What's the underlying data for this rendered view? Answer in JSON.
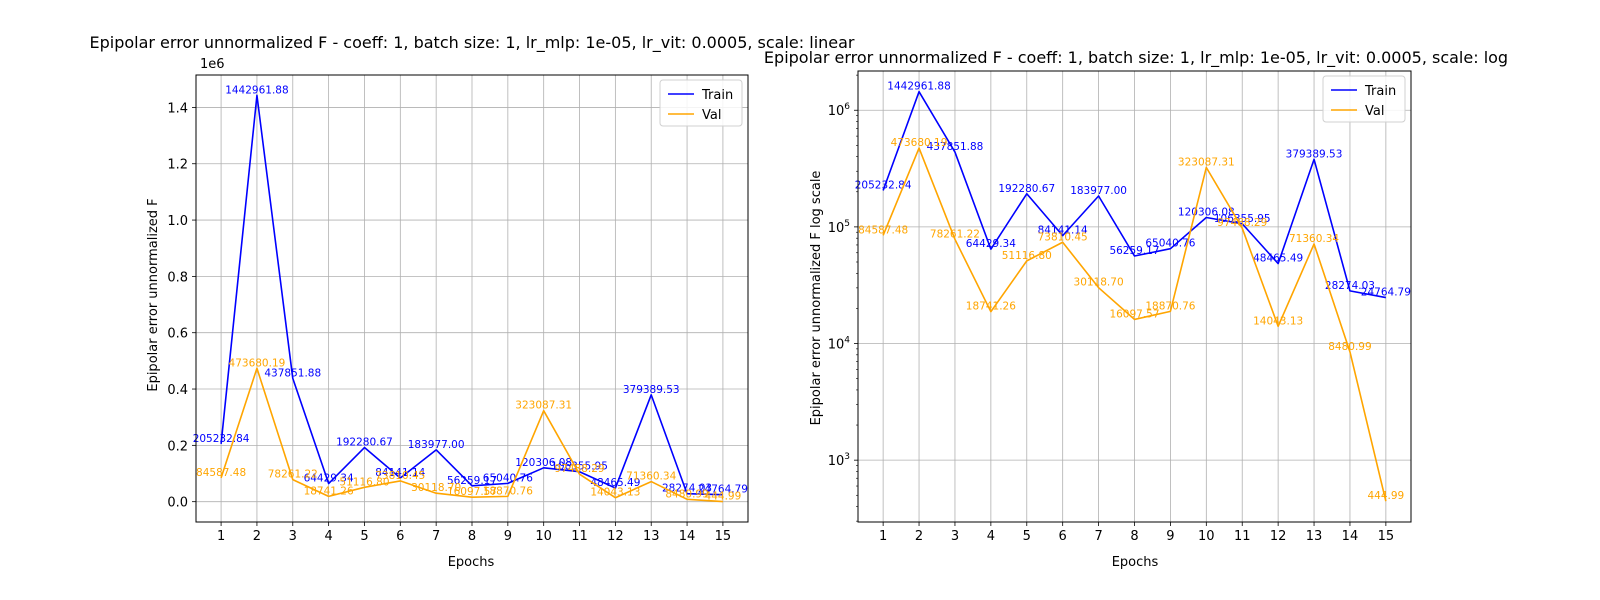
{
  "chart_data": [
    {
      "type": "line",
      "title": "Epipolar error unnormalized F - coeff: 1, batch size: 1, lr_mlp: 1e-05, lr_vit: 0.0005, scale: linear",
      "xlabel": "Epochs",
      "ylabel": "Epipolar error unnormalized F",
      "y_scale": "linear",
      "offset_text": "1e6",
      "xlim": [
        0.3,
        15.7
      ],
      "ylim": [
        -72148,
        1515110
      ],
      "yticks": [
        0,
        200000,
        400000,
        600000,
        800000,
        1000000,
        1200000,
        1400000
      ],
      "ytick_labels": [
        "0.0",
        "0.2",
        "0.4",
        "0.6",
        "0.8",
        "1.0",
        "1.2",
        "1.4"
      ],
      "grid": true,
      "legend": "top-right",
      "x": [
        1,
        2,
        3,
        4,
        5,
        6,
        7,
        8,
        9,
        10,
        11,
        12,
        13,
        14,
        15
      ],
      "series": [
        {
          "name": "Train",
          "color": "#0000ff",
          "values": [
            205232.84,
            1442961.88,
            437851.88,
            64429.34,
            192280.67,
            84141.14,
            183977.0,
            56259.17,
            65040.76,
            120306.08,
            106355.95,
            48465.49,
            379389.53,
            28274.03,
            24764.79
          ],
          "labels": [
            "205232.84",
            "1442961.88",
            "437851.88",
            "64429.34",
            "192280.67",
            "84141.14",
            "183977.00",
            "56259.17",
            "65040.76",
            "120306.08",
            "106355.95",
            "48465.49",
            "379389.53",
            "28274.03",
            "24764.79"
          ]
        },
        {
          "name": "Val",
          "color": "#ffa500",
          "values": [
            84587.48,
            473680.19,
            78261.22,
            18741.26,
            51116.8,
            73810.45,
            30118.7,
            16097.57,
            18870.76,
            323087.31,
            97488.29,
            14043.13,
            71360.34,
            8480.99,
            444.99
          ],
          "labels": [
            "84587.48",
            "473680.19",
            "78261.22",
            "18741.26",
            "51116.80",
            "73810.45",
            "30118.70",
            "16097.57",
            "18870.76",
            "323087.31",
            "97488.29",
            "14043.13",
            "71360.34",
            "8480.99",
            "444.99"
          ]
        }
      ]
    },
    {
      "type": "line",
      "title": "Epipolar error unnormalized F - coeff: 1, batch size: 1, lr_mlp: 1e-05, lr_vit: 0.0005, scale: log",
      "xlabel": "Epochs",
      "ylabel": "Epipolar error unnormalized F log scale",
      "y_scale": "log",
      "xlim": [
        0.3,
        15.7
      ],
      "ylim": [
        295,
        2170000
      ],
      "yticks": [
        1000,
        10000,
        100000,
        1000000
      ],
      "ytick_labels": [
        "10^3",
        "10^4",
        "10^5",
        "10^6"
      ],
      "grid": true,
      "legend": "top-right",
      "x": [
        1,
        2,
        3,
        4,
        5,
        6,
        7,
        8,
        9,
        10,
        11,
        12,
        13,
        14,
        15
      ],
      "series": [
        {
          "name": "Train",
          "color": "#0000ff",
          "values": [
            205232.84,
            1442961.88,
            437851.88,
            64429.34,
            192280.67,
            84141.14,
            183977.0,
            56259.17,
            65040.76,
            120306.08,
            106355.95,
            48465.49,
            379389.53,
            28274.03,
            24764.79
          ],
          "labels": [
            "205232.84",
            "1442961.88",
            "437851.88",
            "64429.34",
            "192280.67",
            "84141.14",
            "183977.00",
            "56259.17",
            "65040.76",
            "120306.08",
            "106355.95",
            "48465.49",
            "379389.53",
            "28274.03",
            "24764.79"
          ]
        },
        {
          "name": "Val",
          "color": "#ffa500",
          "values": [
            84587.48,
            473680.19,
            78261.22,
            18741.26,
            51116.8,
            73810.45,
            30118.7,
            16097.57,
            18870.76,
            323087.31,
            97488.29,
            14043.13,
            71360.34,
            8480.99,
            444.99
          ],
          "labels": [
            "84587.48",
            "473680.19",
            "78261.22",
            "18741.26",
            "51116.80",
            "73810.45",
            "30118.70",
            "16097.57",
            "18870.76",
            "323087.31",
            "97488.29",
            "14043.13",
            "71360.34",
            "8480.99",
            "444.99"
          ]
        }
      ]
    }
  ]
}
